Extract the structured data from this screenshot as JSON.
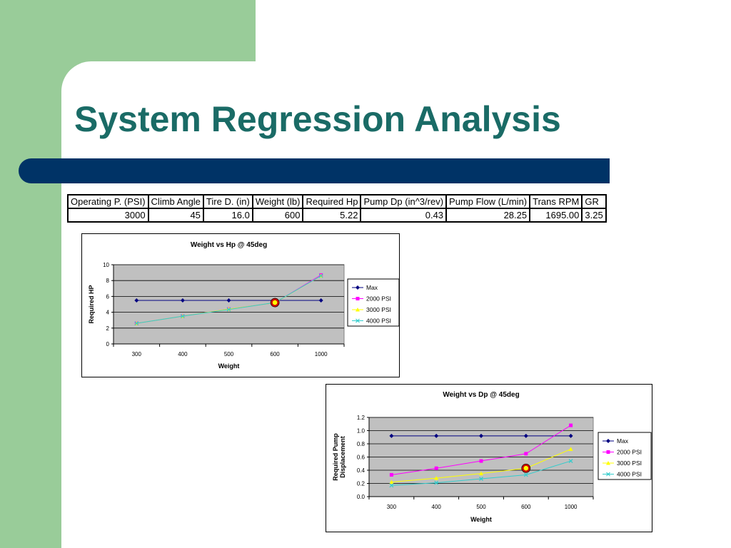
{
  "slide": {
    "title": "System Regression Analysis"
  },
  "params_table": {
    "headers": [
      "Operating P. (PSI)",
      "Climb Angle",
      "Tire D. (in)",
      "Weight (lb)",
      "Required Hp",
      "Pump Dp (in^3/rev)",
      "Pump Flow (L/min)",
      "Trans RPM",
      "GR"
    ],
    "values": [
      "3000",
      "45",
      "16.0",
      "600",
      "5.22",
      "0.43",
      "28.25",
      "1695.00",
      "3.25"
    ]
  },
  "colors": {
    "background_green": "#99cc99",
    "title_teal": "#1a6b66",
    "bar_navy": "#003366",
    "plot_gray": "#c0c0c0",
    "max": "#000080",
    "psi2000": "#ff00ff",
    "psi3000": "#ffff00",
    "psi4000": "#33cccc",
    "highlight": "#cc0000"
  },
  "chart_data": [
    {
      "type": "line",
      "title": "Weight vs Hp @ 45deg",
      "xlabel": "Weight",
      "ylabel": "Required HP",
      "categories": [
        "300",
        "400",
        "500",
        "600",
        "1000"
      ],
      "ylim": [
        0,
        10
      ],
      "yticks": [
        "0",
        "2",
        "4",
        "6",
        "8",
        "10"
      ],
      "grid": true,
      "legend": "right",
      "series": [
        {
          "name": "Max",
          "values": [
            5.5,
            5.5,
            5.5,
            5.5,
            5.5
          ],
          "color": "#000080",
          "marker": "diamond"
        },
        {
          "name": "2000 PSI",
          "values": [
            2.6,
            3.5,
            4.4,
            5.2,
            8.7
          ],
          "color": "#ff00ff",
          "marker": "square"
        },
        {
          "name": "3000 PSI",
          "values": [
            2.6,
            3.5,
            4.4,
            5.2,
            8.6
          ],
          "color": "#ffff00",
          "marker": "triangle"
        },
        {
          "name": "4000 PSI",
          "values": [
            2.6,
            3.5,
            4.35,
            5.22,
            8.6
          ],
          "color": "#33cccc",
          "marker": "x"
        }
      ],
      "highlight": {
        "category": "600",
        "value": 5.22
      }
    },
    {
      "type": "line",
      "title": "Weight vs Dp @ 45deg",
      "xlabel": "Weight",
      "ylabel": "Required Pump Displacement",
      "categories": [
        "300",
        "400",
        "500",
        "600",
        "1000"
      ],
      "ylim": [
        0,
        1.2
      ],
      "yticks": [
        "0.0",
        "0.2",
        "0.4",
        "0.6",
        "0.8",
        "1.0",
        "1.2"
      ],
      "grid": true,
      "legend": "right",
      "series": [
        {
          "name": "Max",
          "values": [
            0.92,
            0.92,
            0.92,
            0.92,
            0.92
          ],
          "color": "#000080",
          "marker": "diamond"
        },
        {
          "name": "2000 PSI",
          "values": [
            0.33,
            0.43,
            0.54,
            0.65,
            1.08
          ],
          "color": "#ff00ff",
          "marker": "square"
        },
        {
          "name": "3000 PSI",
          "values": [
            0.22,
            0.28,
            0.35,
            0.43,
            0.72
          ],
          "color": "#ffff00",
          "marker": "triangle"
        },
        {
          "name": "4000 PSI",
          "values": [
            0.17,
            0.21,
            0.27,
            0.33,
            0.54
          ],
          "color": "#33cccc",
          "marker": "x"
        }
      ],
      "highlight": {
        "category": "600",
        "value": 0.43
      }
    }
  ]
}
